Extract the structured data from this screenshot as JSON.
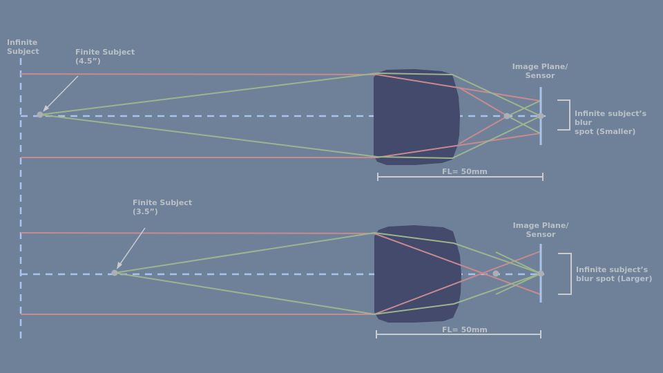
{
  "labels": {
    "infinite_subject": "Infinite\nSubject",
    "top": {
      "finite_subject": "Finite Subject\n(4.5”)",
      "image_plane": "Image Plane/\nSensor",
      "blur_spot": "Infinite subject’s blur\nspot (Smaller)",
      "focal_length": "FL= 50mm"
    },
    "bottom": {
      "finite_subject": "Finite Subject\n(3.5”)",
      "image_plane": "Image Plane/\nSensor",
      "blur_spot": "Infinite subject’s\nblur spot (Larger)",
      "focal_length": "FL= 50mm"
    }
  },
  "colors": {
    "background": "#6f8199",
    "infinite_rays": "#c98a8f",
    "finite_rays": "#9db58f",
    "axis": "#a9c4ec",
    "lens": "#434a6b",
    "sensor": "#a9c4ec",
    "annotation": "#c8ccd0"
  }
}
